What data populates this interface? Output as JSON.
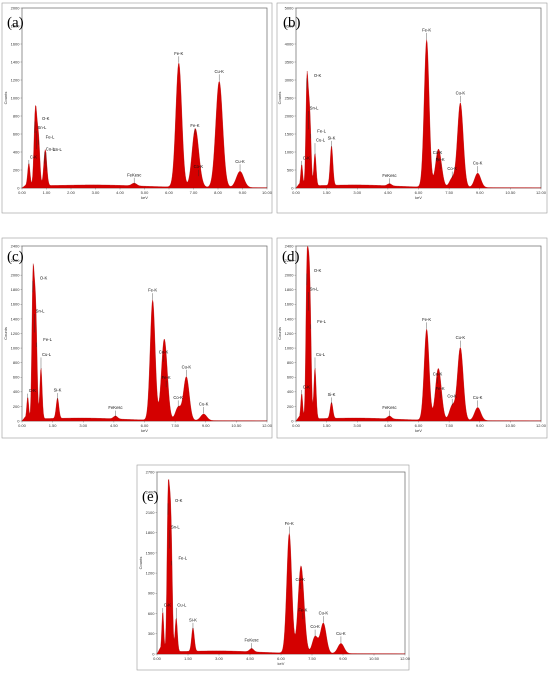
{
  "chart_data": [
    {
      "panel": "(a)",
      "type": "area",
      "xlabel": "keV",
      "ylabel": "Counts",
      "xlim": [
        0,
        10
      ],
      "ylim": [
        0,
        2000
      ],
      "x_ticks": [
        "0.00",
        "1.00",
        "2.00",
        "3.00",
        "4.00",
        "5.00",
        "6.00",
        "7.00",
        "8.00",
        "9.00",
        "10.00"
      ],
      "y_ticks": [
        "0",
        "200",
        "400",
        "600",
        "800",
        "1000",
        "1200",
        "1400",
        "1600",
        "1800",
        "2000"
      ],
      "peaks": [
        {
          "x": 0.28,
          "y": 250,
          "label": "C-K"
        },
        {
          "x": 0.53,
          "y": 600,
          "label": "O-K"
        },
        {
          "x": 0.59,
          "y": 420,
          "label": "Sn-L"
        },
        {
          "x": 0.68,
          "y": 470,
          "label": "Fe-L"
        },
        {
          "x": 0.93,
          "y": 260,
          "label": "Cu-L"
        },
        {
          "x": 0.98,
          "y": 180,
          "label": "Sn-L"
        },
        {
          "x": 4.58,
          "y": 30,
          "label": "FeKesc"
        },
        {
          "x": 6.4,
          "y": 1380,
          "label": "Fe-K"
        },
        {
          "x": 7.06,
          "y": 580,
          "label": "Fe-K"
        },
        {
          "x": 7.2,
          "y": 120,
          "label": "Co-K"
        },
        {
          "x": 8.05,
          "y": 1180,
          "label": "Cu-K"
        },
        {
          "x": 8.9,
          "y": 180,
          "label": "Cu-K"
        }
      ],
      "peak_label_order": [
        "O-K",
        "Sn-L",
        "Fe-L",
        "C-K",
        "Cu-L",
        "Sn-L",
        "FeKesc",
        "Fe-K",
        "Co-K",
        "Fe-K",
        "Co-K",
        "Cu-K",
        "Cu-K"
      ]
    },
    {
      "panel": "(b)",
      "type": "area",
      "xlabel": "keV",
      "ylabel": "Counts",
      "xlim": [
        0,
        12
      ],
      "ylim": [
        0,
        5000
      ],
      "x_ticks": [
        "0.00",
        "1.50",
        "3.00",
        "4.50",
        "6.00",
        "7.50",
        "9.00",
        "10.50",
        "12.00"
      ],
      "y_ticks": [
        "0",
        "500",
        "1000",
        "1500",
        "2000",
        "2500",
        "3000",
        "3500",
        "4000",
        "4500",
        "5000"
      ],
      "peaks": [
        {
          "x": 0.28,
          "y": 600,
          "label": "C-K"
        },
        {
          "x": 0.53,
          "y": 2700,
          "label": "O-K"
        },
        {
          "x": 0.62,
          "y": 1600,
          "label": "Sn-L"
        },
        {
          "x": 0.7,
          "y": 1350,
          "label": "Fe-L"
        },
        {
          "x": 0.93,
          "y": 900,
          "label": "Cu-L"
        },
        {
          "x": 1.74,
          "y": 1100,
          "label": "Si-K"
        },
        {
          "x": 4.58,
          "y": 60,
          "label": "FeKesc"
        },
        {
          "x": 6.4,
          "y": 4100,
          "label": "Fe-K"
        },
        {
          "x": 6.93,
          "y": 700,
          "label": "Co-K"
        },
        {
          "x": 7.06,
          "y": 500,
          "label": "Fe-K"
        },
        {
          "x": 7.65,
          "y": 250,
          "label": "Co-K"
        },
        {
          "x": 8.05,
          "y": 2350,
          "label": "Cu-K"
        },
        {
          "x": 8.9,
          "y": 400,
          "label": "Cu-K"
        }
      ],
      "peak_label_order": [
        "O-K",
        "Sn-L",
        "Fe-L",
        "Sn-L",
        "Cu-L",
        "C-K",
        "Si-K",
        "FeKesc",
        "Fe-K",
        "Co-K",
        "Fe-K",
        "Co-K",
        "Cu-K",
        "Cu-K"
      ]
    },
    {
      "panel": "(c)",
      "type": "area",
      "xlabel": "keV",
      "ylabel": "Counts",
      "xlim": [
        0,
        12
      ],
      "ylim": [
        0,
        2400
      ],
      "x_ticks": [
        "0.00",
        "1.50",
        "3.00",
        "4.50",
        "6.00",
        "7.50",
        "9.00",
        "10.50",
        "12.00"
      ],
      "y_ticks": [
        "0",
        "200",
        "400",
        "600",
        "800",
        "1000",
        "1200",
        "1400",
        "1600",
        "1800",
        "2000",
        "2200",
        "2400"
      ],
      "peaks": [
        {
          "x": 0.28,
          "y": 300,
          "label": "C-K"
        },
        {
          "x": 0.53,
          "y": 1750,
          "label": "O-K"
        },
        {
          "x": 0.62,
          "y": 1200,
          "label": "Sn-L"
        },
        {
          "x": 0.7,
          "y": 1000,
          "label": "Fe-L"
        },
        {
          "x": 0.93,
          "y": 700,
          "label": "Cu-L"
        },
        {
          "x": 1.74,
          "y": 280,
          "label": "Si-K"
        },
        {
          "x": 4.58,
          "y": 40,
          "label": "FeKesc"
        },
        {
          "x": 6.4,
          "y": 1650,
          "label": "Fe-K"
        },
        {
          "x": 6.93,
          "y": 800,
          "label": "Co-K"
        },
        {
          "x": 7.06,
          "y": 450,
          "label": "Fe-K"
        },
        {
          "x": 7.65,
          "y": 180,
          "label": "Co-K"
        },
        {
          "x": 8.05,
          "y": 600,
          "label": "Cu-K"
        },
        {
          "x": 8.9,
          "y": 90,
          "label": "Cu-K"
        }
      ],
      "peak_label_order": [
        "O-K",
        "Sn-L",
        "Fe-L",
        "Sn-L",
        "Cu-L",
        "Sn-L",
        "C-K",
        "Sn-L",
        "Si-K",
        "FeKesc",
        "Fe-K",
        "Co-K",
        "Fe-K",
        "Co-K",
        "Cu-K",
        "Cu-K"
      ]
    },
    {
      "panel": "(d)",
      "type": "area",
      "xlabel": "keV",
      "ylabel": "Counts",
      "xlim": [
        0,
        12
      ],
      "ylim": [
        0,
        2400
      ],
      "x_ticks": [
        "0.00",
        "1.50",
        "3.00",
        "4.50",
        "6.00",
        "7.50",
        "9.00",
        "10.50",
        "12.00"
      ],
      "y_ticks": [
        "0",
        "200",
        "400",
        "600",
        "800",
        "1000",
        "1200",
        "1400",
        "1600",
        "1800",
        "2000",
        "2200",
        "2400"
      ],
      "peaks": [
        {
          "x": 0.28,
          "y": 350,
          "label": "C-K"
        },
        {
          "x": 0.53,
          "y": 1850,
          "label": "O-K"
        },
        {
          "x": 0.62,
          "y": 1500,
          "label": "Sn-L"
        },
        {
          "x": 0.7,
          "y": 1250,
          "label": "Fe-L"
        },
        {
          "x": 0.93,
          "y": 700,
          "label": "Cu-L"
        },
        {
          "x": 1.74,
          "y": 220,
          "label": "Si-K"
        },
        {
          "x": 4.58,
          "y": 40,
          "label": "FeKesc"
        },
        {
          "x": 6.4,
          "y": 1250,
          "label": "Fe-K"
        },
        {
          "x": 6.93,
          "y": 500,
          "label": "Co-K"
        },
        {
          "x": 7.06,
          "y": 300,
          "label": "Fe-K"
        },
        {
          "x": 7.65,
          "y": 200,
          "label": "Co-K"
        },
        {
          "x": 8.05,
          "y": 1000,
          "label": "Cu-K"
        },
        {
          "x": 8.9,
          "y": 180,
          "label": "Cu-K"
        }
      ],
      "peak_label_order": [
        "O-K",
        "Sn-L",
        "Fe-L",
        "Sn-L",
        "Cu-L",
        "Sn-L",
        "C-K",
        "Sn-L",
        "Si-K",
        "FeKesc",
        "Fe-K",
        "Co-K",
        "Fe-K",
        "Co-K",
        "Cu-K",
        "Cu-K"
      ]
    },
    {
      "panel": "(e)",
      "type": "area",
      "xlabel": "keV",
      "ylabel": "Counts",
      "xlim": [
        0,
        12
      ],
      "ylim": [
        0,
        2700
      ],
      "x_ticks": [
        "0.00",
        "1.50",
        "3.00",
        "4.50",
        "6.00",
        "7.50",
        "9.00",
        "10.50",
        "12.00"
      ],
      "y_ticks": [
        "0",
        "300",
        "600",
        "900",
        "1200",
        "1500",
        "1800",
        "2100",
        "2400",
        "2700"
      ],
      "peaks": [
        {
          "x": 0.28,
          "y": 600,
          "label": "C-K"
        },
        {
          "x": 0.53,
          "y": 2050,
          "label": "O-K"
        },
        {
          "x": 0.62,
          "y": 1550,
          "label": "Sn-L"
        },
        {
          "x": 0.7,
          "y": 1300,
          "label": "Fe-L"
        },
        {
          "x": 0.93,
          "y": 500,
          "label": "Cu-L"
        },
        {
          "x": 1.74,
          "y": 350,
          "label": "Si-K"
        },
        {
          "x": 4.58,
          "y": 50,
          "label": "FeKesc"
        },
        {
          "x": 6.4,
          "y": 1780,
          "label": "Fe-K"
        },
        {
          "x": 6.93,
          "y": 950,
          "label": "Co-K"
        },
        {
          "x": 7.06,
          "y": 500,
          "label": "Fe-K"
        },
        {
          "x": 7.65,
          "y": 250,
          "label": "Co-K"
        },
        {
          "x": 8.05,
          "y": 450,
          "label": "Cu-K"
        },
        {
          "x": 8.9,
          "y": 150,
          "label": "Cu-K"
        }
      ],
      "peak_label_order": [
        "O-K",
        "Sn-L",
        "Fe-L",
        "Sn-L",
        "Cu-L",
        "Sn-L",
        "C-K",
        "Sn-L",
        "Si-K",
        "FeKesc",
        "Fe-K",
        "Co-K",
        "Fe-K",
        "Co-K",
        "Cu-K",
        "Cu-K"
      ]
    }
  ]
}
